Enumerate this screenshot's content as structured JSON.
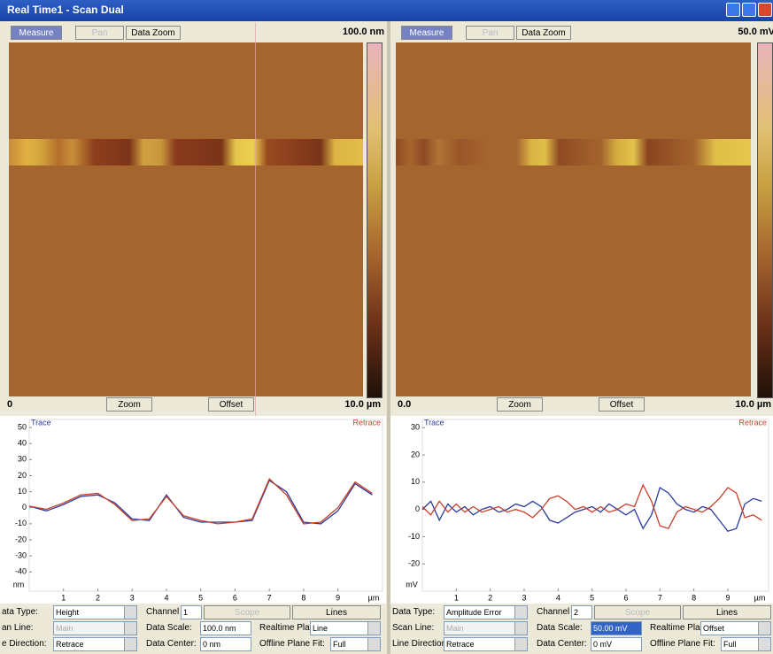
{
  "window": {
    "title": "Real Time1 - Scan Dual"
  },
  "panels": [
    {
      "toolbar": [
        "Measure",
        "Pan",
        "Data Zoom"
      ],
      "scale_label": "100.0 nm",
      "bottom": {
        "left": "0",
        "buttons": [
          "Zoom",
          "Offset"
        ],
        "right": "10.0 µm"
      },
      "plot": {
        "type": "line",
        "y_unit": "nm",
        "x_unit": "µm",
        "xlim": [
          0,
          10.3
        ],
        "ylim": [
          -52,
          55
        ],
        "xticks": [
          1,
          2,
          3,
          4,
          5,
          6,
          7,
          8,
          9
        ],
        "yticks": [
          50,
          40,
          30,
          20,
          10,
          0,
          -10,
          -20,
          -30,
          -40
        ],
        "x": [
          0,
          0.5,
          1,
          1.5,
          2,
          2.5,
          3,
          3.5,
          4,
          4.5,
          5,
          5.5,
          6,
          6.5,
          7,
          7.5,
          8,
          8.5,
          9,
          9.5,
          10
        ],
        "series": [
          {
            "name": "Trace",
            "color": "#2b3c9c",
            "values": [
              1,
              -2,
              2,
              7,
              8,
              3,
              -7,
              -8,
              8,
              -6,
              -9,
              -9,
              -9,
              -8,
              17,
              10,
              -9,
              -10,
              -2,
              15,
              8
            ]
          },
          {
            "name": "Retrace",
            "color": "#c8402a",
            "values": [
              1,
              -1,
              3,
              8,
              9,
              2,
              -8,
              -7,
              7,
              -5,
              -8,
              -10,
              -9,
              -7,
              18,
              8,
              -10,
              -9,
              0,
              16,
              9
            ]
          }
        ]
      },
      "controls": {
        "data_type": {
          "label": "ata Type:",
          "value": "Height"
        },
        "scan_line": {
          "label": "an Line:",
          "value": "Main"
        },
        "line_direction": {
          "label": "e Direction:",
          "value": "Retrace"
        },
        "channel": {
          "label": "Channel",
          "value": "1"
        },
        "buttons": [
          "Scope",
          "Lines"
        ],
        "data_scale": {
          "label": "Data Scale:",
          "value": "100.0 nm"
        },
        "data_center": {
          "label": "Data Center:",
          "value": "0 nm"
        },
        "realtime_fit": {
          "label": "Realtime Plane Fit:",
          "value": "Line"
        },
        "offline_fit": {
          "label": "Offline Plane Fit:",
          "value": "Full"
        }
      }
    },
    {
      "toolbar": [
        "Measure",
        "Pan",
        "Data Zoom"
      ],
      "scale_label": "50.0 mV",
      "bottom": {
        "left": "0.0",
        "buttons": [
          "Zoom",
          "Offset"
        ],
        "right": "10.0 µm"
      },
      "plot": {
        "type": "line",
        "y_unit": "mV",
        "x_unit": "µm",
        "xlim": [
          0,
          10.2
        ],
        "ylim": [
          -30,
          33
        ],
        "xticks": [
          1,
          2,
          3,
          4,
          5,
          6,
          7,
          8,
          9
        ],
        "yticks": [
          30,
          20,
          10,
          0,
          -10,
          -20
        ],
        "x": [
          0,
          0.25,
          0.5,
          0.75,
          1,
          1.25,
          1.5,
          1.75,
          2,
          2.25,
          2.5,
          2.75,
          3,
          3.25,
          3.5,
          3.75,
          4,
          4.25,
          4.5,
          4.75,
          5,
          5.25,
          5.5,
          5.75,
          6,
          6.25,
          6.5,
          6.75,
          7,
          7.25,
          7.5,
          7.75,
          8,
          8.25,
          8.5,
          8.75,
          9,
          9.25,
          9.5,
          9.75,
          10
        ],
        "series": [
          {
            "name": "Trace",
            "color": "#2b3c9c",
            "values": [
              0,
              3,
              -4,
              2,
              -1,
              1,
              -2,
              0,
              1,
              -1,
              0,
              2,
              1,
              3,
              1,
              -4,
              -5,
              -3,
              -1,
              0,
              1,
              -1,
              2,
              0,
              -2,
              0,
              -7,
              -2,
              8,
              6,
              2,
              0,
              -1,
              1,
              0,
              -4,
              -8,
              -7,
              2,
              4,
              3
            ]
          },
          {
            "name": "Retrace",
            "color": "#c8402a",
            "values": [
              1,
              -2,
              3,
              -1,
              2,
              -1,
              1,
              -1,
              0,
              1,
              -1,
              0,
              -1,
              -3,
              0,
              4,
              5,
              3,
              0,
              1,
              -1,
              1,
              -1,
              0,
              2,
              1,
              9,
              3,
              -6,
              -7,
              -1,
              1,
              0,
              -1,
              1,
              4,
              8,
              6,
              -3,
              -2,
              -4
            ]
          }
        ]
      },
      "controls": {
        "data_type": {
          "label": "Data Type:",
          "value": "Amplitude Error"
        },
        "scan_line": {
          "label": "Scan Line:",
          "value": "Main"
        },
        "line_direction": {
          "label": "Line Direction:",
          "value": "Retrace"
        },
        "channel": {
          "label": "Channel",
          "value": "2"
        },
        "buttons": [
          "Scope",
          "Lines"
        ],
        "data_scale": {
          "label": "Data Scale:",
          "value": "50.00 mV"
        },
        "data_center": {
          "label": "Data Center:",
          "value": "0 mV"
        },
        "realtime_fit": {
          "label": "Realtime Plane Fit:",
          "value": "Offset"
        },
        "offline_fit": {
          "label": "Offline Plane Fit:",
          "value": "Full"
        }
      }
    }
  ]
}
